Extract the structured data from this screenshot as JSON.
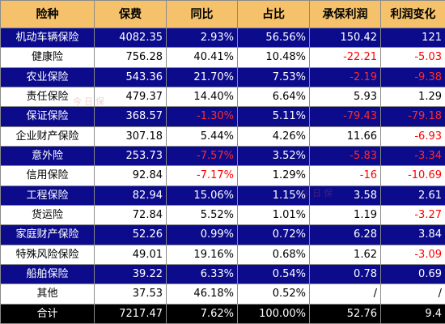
{
  "headers": [
    "险种",
    "保费",
    "同比",
    "占比",
    "承保利润",
    "利润变化"
  ],
  "rows": [
    {
      "name": "机动车辆保险",
      "premium": "4082.35",
      "yoy": "2.93%",
      "share": "56.56%",
      "profit": "150.42",
      "change": "121"
    },
    {
      "name": "健康险",
      "premium": "756.28",
      "yoy": "40.41%",
      "share": "10.48%",
      "profit": "-22.21",
      "change": "-5.03"
    },
    {
      "name": "农业保险",
      "premium": "543.36",
      "yoy": "21.70%",
      "share": "7.53%",
      "profit": "-2.19",
      "change": "-9.38"
    },
    {
      "name": "责任保险",
      "premium": "479.37",
      "yoy": "14.40%",
      "share": "6.64%",
      "profit": "5.93",
      "change": "1.29"
    },
    {
      "name": "保证保险",
      "premium": "368.57",
      "yoy": "-1.30%",
      "share": "5.11%",
      "profit": "-79.43",
      "change": "-79.18"
    },
    {
      "name": "企业财产保险",
      "premium": "307.18",
      "yoy": "5.44%",
      "share": "4.26%",
      "profit": "11.66",
      "change": "-6.93"
    },
    {
      "name": "意外险",
      "premium": "253.73",
      "yoy": "-7.57%",
      "share": "3.52%",
      "profit": "-5.83",
      "change": "-3.34"
    },
    {
      "name": "信用保险",
      "premium": "92.84",
      "yoy": "-7.17%",
      "share": "1.29%",
      "profit": "-16",
      "change": "-10.69"
    },
    {
      "name": "工程保险",
      "premium": "82.94",
      "yoy": "15.06%",
      "share": "1.15%",
      "profit": "3.58",
      "change": "2.61"
    },
    {
      "name": "货运险",
      "premium": "72.84",
      "yoy": "5.52%",
      "share": "1.01%",
      "profit": "1.19",
      "change": "-3.27"
    },
    {
      "name": "家庭财产保险",
      "premium": "52.26",
      "yoy": "0.99%",
      "share": "0.72%",
      "profit": "6.28",
      "change": "3.84"
    },
    {
      "name": "特殊风险保险",
      "premium": "49.01",
      "yoy": "19.16%",
      "share": "0.68%",
      "profit": "1.62",
      "change": "-3.09"
    },
    {
      "name": "船舶保险",
      "premium": "39.22",
      "yoy": "6.33%",
      "share": "0.54%",
      "profit": "0.78",
      "change": "0.69"
    },
    {
      "name": "其他",
      "premium": "37.53",
      "yoy": "46.18%",
      "share": "0.52%",
      "profit": "/",
      "change": "/"
    }
  ],
  "total": {
    "name": "合计",
    "premium": "7217.47",
    "yoy": "7.62%",
    "share": "100.00%",
    "profit": "52.76",
    "change": "9.4"
  },
  "watermark": "今日保",
  "colors": {
    "header_bg": "#f5c26b",
    "dark_row_bg": "#0b0b8c",
    "negative": "#ff0000",
    "total_bg": "#000000"
  }
}
